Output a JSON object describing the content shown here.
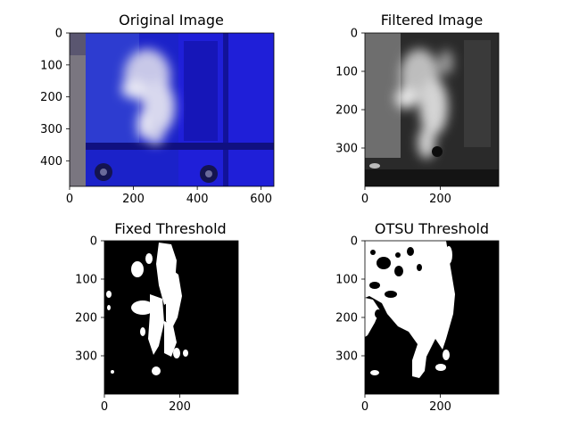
{
  "chart_data": [
    {
      "type": "image",
      "title": "Original Image",
      "xlim": [
        0,
        640
      ],
      "ylim": [
        480,
        0
      ],
      "xticks": [
        0,
        200,
        400,
        600
      ],
      "yticks": [
        0,
        100,
        200,
        300,
        400
      ]
    },
    {
      "type": "image",
      "title": "Filtered Image",
      "xlim": [
        0,
        355
      ],
      "ylim": [
        400,
        0
      ],
      "xticks": [
        0,
        200
      ],
      "yticks": [
        0,
        100,
        200,
        300
      ]
    },
    {
      "type": "image",
      "title": "Fixed Threshold",
      "xlim": [
        0,
        355
      ],
      "ylim": [
        400,
        0
      ],
      "xticks": [
        0,
        200
      ],
      "yticks": [
        0,
        100,
        200,
        300
      ]
    },
    {
      "type": "image",
      "title": "OTSU Threshold",
      "xlim": [
        0,
        355
      ],
      "ylim": [
        400,
        0
      ],
      "xticks": [
        0,
        200
      ],
      "yticks": [
        0,
        100,
        200,
        300
      ]
    }
  ]
}
